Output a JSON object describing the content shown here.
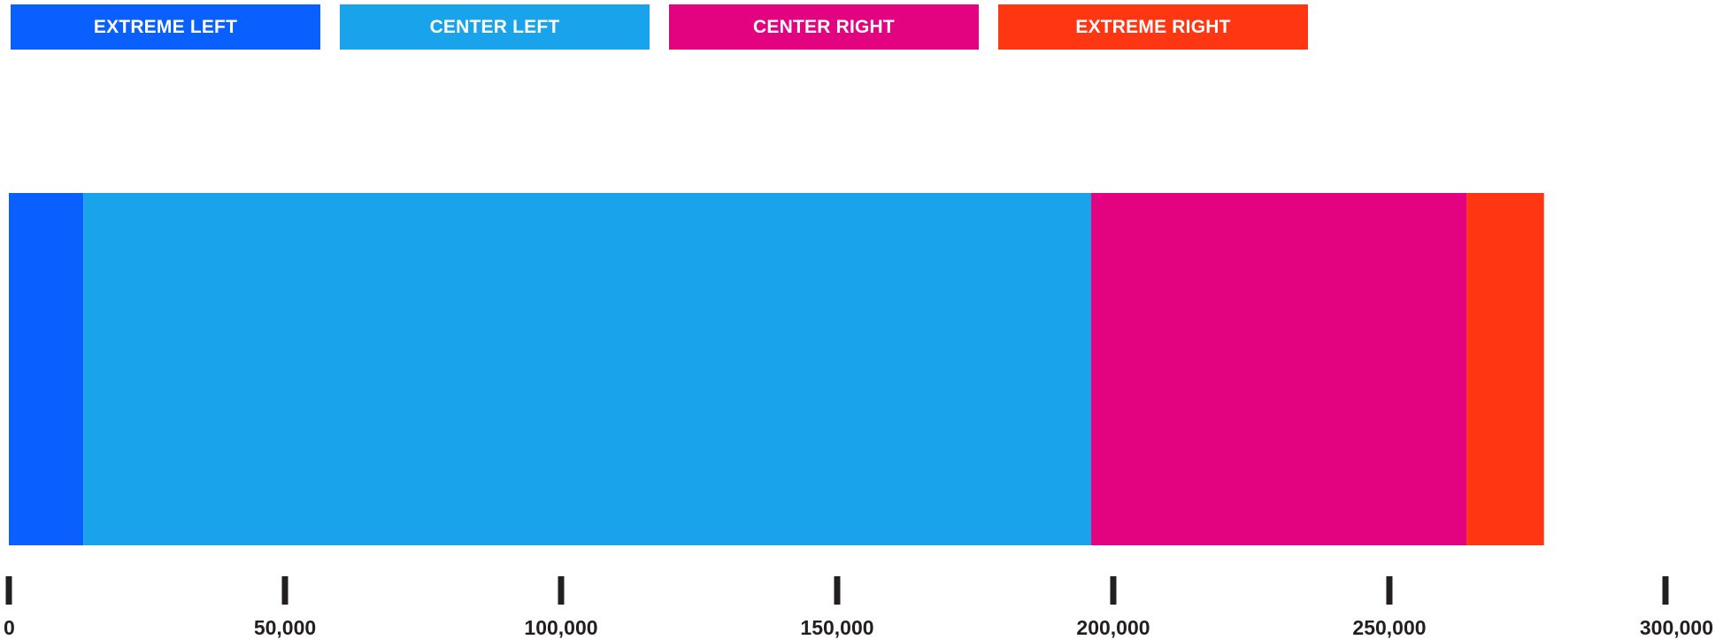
{
  "chart_data": {
    "type": "bar",
    "orientation": "horizontal",
    "stacked": true,
    "series": [
      {
        "name": "EXTREME LEFT",
        "value": 13500,
        "color": "#0a5fff"
      },
      {
        "name": "CENTER LEFT",
        "value": 182500,
        "color": "#19a3ea"
      },
      {
        "name": "CENTER RIGHT",
        "value": 68000,
        "color": "#e3027f"
      },
      {
        "name": "EXTREME RIGHT",
        "value": 14000,
        "color": "#ff3612"
      }
    ],
    "xlim": [
      0,
      300000
    ],
    "ticks": [
      0,
      50000,
      100000,
      150000,
      200000,
      250000,
      300000
    ],
    "tick_labels": [
      "0",
      "50,000",
      "100,000",
      "150,000",
      "200,000",
      "250,000",
      "300,000"
    ],
    "legend_position": "top-left",
    "grid": false,
    "tick_color": "#231f20"
  }
}
